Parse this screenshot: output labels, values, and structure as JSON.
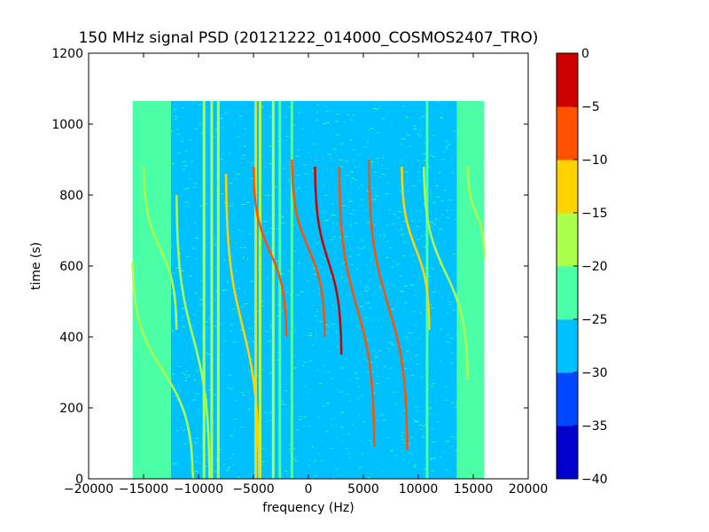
{
  "chart_data": {
    "type": "heatmap",
    "title": "150 MHz signal PSD (20121222_014000_COSMOS2407_TRO)",
    "xlabel": "frequency (Hz)",
    "ylabel": "time (s)",
    "xlim": [
      -20000,
      20000
    ],
    "ylim": [
      0,
      1200
    ],
    "xticks": [
      -20000,
      -15000,
      -10000,
      -5000,
      0,
      5000,
      10000,
      15000,
      20000
    ],
    "xtick_labels": [
      "−20000",
      "−15000",
      "−10000",
      "−5000",
      "0",
      "5000",
      "10000",
      "15000",
      "20000"
    ],
    "yticks": [
      0,
      200,
      400,
      600,
      800,
      1000,
      1200
    ],
    "ytick_labels": [
      "0",
      "200",
      "400",
      "600",
      "800",
      "1000",
      "1200"
    ],
    "data_extent": {
      "freq": [
        -16000,
        16000
      ],
      "time": [
        0,
        1065
      ]
    },
    "colorbar": {
      "colormap": "jet",
      "range": [
        -40,
        0
      ],
      "levels": [
        -40,
        -35,
        -30,
        -25,
        -20,
        -15,
        -10,
        -5,
        0
      ],
      "tick_labels": [
        "−40",
        "−35",
        "−30",
        "−25",
        "−20",
        "−15",
        "−10",
        "−5",
        "0"
      ],
      "colors": [
        "#0000cd",
        "#0047ff",
        "#00c0ff",
        "#4affa6",
        "#acff4a",
        "#ffd200",
        "#ff5200",
        "#cd0000"
      ]
    },
    "background_level_db": {
      "passband": -27.5,
      "band_edges": -22.5
    },
    "constant_lines": [
      {
        "freq": -9500,
        "level_db": -17.5
      },
      {
        "freq": -8800,
        "level_db": -17.5
      },
      {
        "freq": -8200,
        "level_db": -17.5
      },
      {
        "freq": -4800,
        "level_db": -12.5
      },
      {
        "freq": -4400,
        "level_db": -17.5
      },
      {
        "freq": -3200,
        "level_db": -17.5
      },
      {
        "freq": -2600,
        "level_db": -22.5
      },
      {
        "freq": -1500,
        "level_db": -22.5
      },
      {
        "freq": 10800,
        "level_db": -22.5
      }
    ],
    "doppler_tracks": [
      {
        "f_top": -15000,
        "f_bottom": -12000,
        "t_top": 880,
        "t_bottom": 420,
        "level_db": -17.5
      },
      {
        "f_top": -16000,
        "f_bottom": -10500,
        "t_top": 610,
        "t_bottom": 0,
        "level_db": -17.5
      },
      {
        "f_top": -12000,
        "f_bottom": -9000,
        "t_top": 800,
        "t_bottom": 0,
        "level_db": -17.5
      },
      {
        "f_top": -7500,
        "f_bottom": -4500,
        "t_top": 860,
        "t_bottom": 0,
        "level_db": -12.5
      },
      {
        "f_top": -5000,
        "f_bottom": -2000,
        "t_top": 880,
        "t_bottom": 400,
        "level_db": -7.5
      },
      {
        "f_top": -1500,
        "f_bottom": 1500,
        "t_top": 900,
        "t_bottom": 400,
        "level_db": -7.5
      },
      {
        "f_top": 600,
        "f_bottom": 3000,
        "t_top": 880,
        "t_bottom": 350,
        "level_db": -2.5
      },
      {
        "f_top": 2800,
        "f_bottom": 6000,
        "t_top": 880,
        "t_bottom": 90,
        "level_db": -7.5
      },
      {
        "f_top": 5500,
        "f_bottom": 9000,
        "t_top": 900,
        "t_bottom": 80,
        "level_db": -7.5
      },
      {
        "f_top": 8500,
        "f_bottom": 11000,
        "t_top": 880,
        "t_bottom": 420,
        "level_db": -12.5
      },
      {
        "f_top": 10500,
        "f_bottom": 14500,
        "t_top": 880,
        "t_bottom": 280,
        "level_db": -17.5
      },
      {
        "f_top": 14500,
        "f_bottom": 16000,
        "t_top": 880,
        "t_bottom": 620,
        "level_db": -17.5
      }
    ]
  }
}
